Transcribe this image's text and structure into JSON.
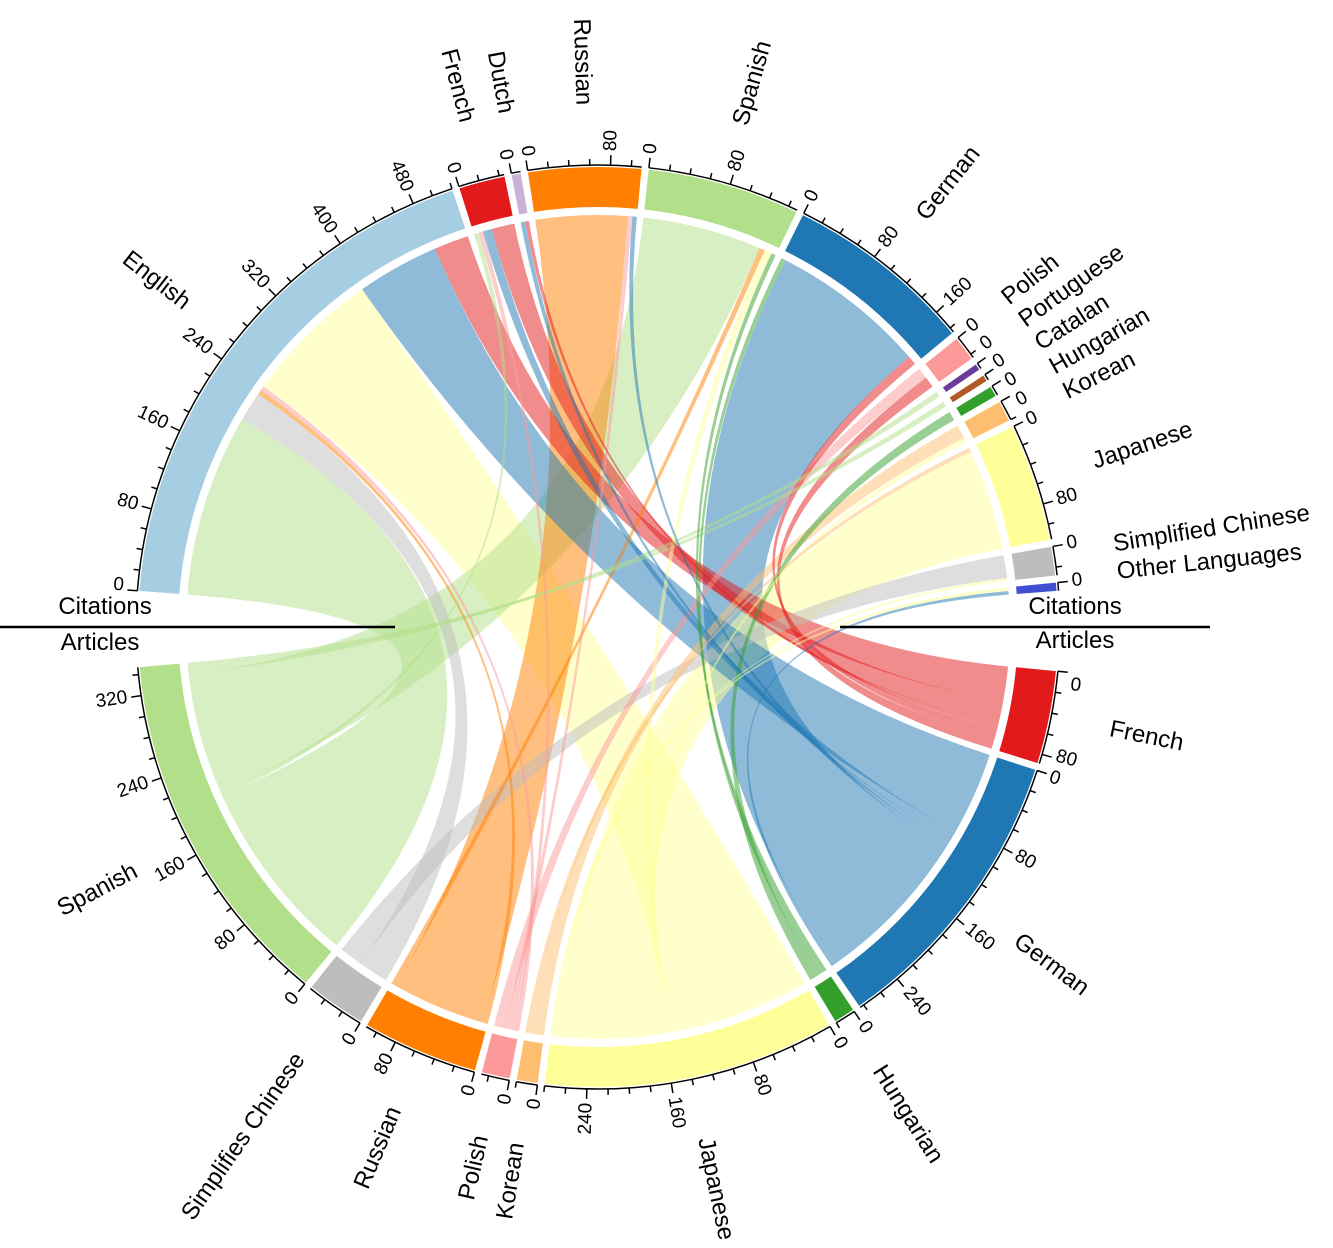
{
  "chart_data": {
    "type": "chord",
    "title": "",
    "upper_half_label_left": "Citations",
    "lower_half_label_left": "Articles",
    "upper_half_label_right": "Citations",
    "lower_half_label_right": "Articles",
    "tick_step": 20,
    "tick_label_step": 80,
    "citations": [
      {
        "name": "English",
        "color": "#a6cee3"
      },
      {
        "name": "French",
        "color": "#e31a1c"
      },
      {
        "name": "Dutch",
        "color": "#cab2d6"
      },
      {
        "name": "Russian",
        "color": "#ff7f00"
      },
      {
        "name": "Spanish",
        "color": "#b2df8a"
      },
      {
        "name": "German",
        "color": "#1f78b4"
      },
      {
        "name": "Polish",
        "color": "#fb9a99"
      },
      {
        "name": "Portuguese",
        "color": "#6a3d9a"
      },
      {
        "name": "Catalan",
        "color": "#b15928"
      },
      {
        "name": "Hungarian",
        "color": "#33a02c"
      },
      {
        "name": "Korean",
        "color": "#fdbf6f"
      },
      {
        "name": "Japanese",
        "color": "#ffff99"
      },
      {
        "name": "Simplified Chinese",
        "color": "#bdbdbd"
      },
      {
        "name": "Other Languages",
        "color": "#3f4fd1"
      }
    ],
    "articles": [
      {
        "name": "French",
        "color": "#e31a1c"
      },
      {
        "name": "German",
        "color": "#1f78b4"
      },
      {
        "name": "Hungarian",
        "color": "#33a02c"
      },
      {
        "name": "Japanese",
        "color": "#ffff99"
      },
      {
        "name": "Korean",
        "color": "#fdbf6f"
      },
      {
        "name": "Polish",
        "color": "#fb9a99"
      },
      {
        "name": "Russian",
        "color": "#ff7f00"
      },
      {
        "name": "Simplifies Chinese",
        "color": "#bdbdbd"
      },
      {
        "name": "Spanish",
        "color": "#b2df8a"
      }
    ],
    "chords": [
      {
        "from": "English",
        "to": "Spanish",
        "value": 200
      },
      {
        "from": "English",
        "to": "Simplifies Chinese",
        "value": 32
      },
      {
        "from": "English",
        "to": "Japanese",
        "value": 150
      },
      {
        "from": "English",
        "to": "German",
        "value": 90
      },
      {
        "from": "English",
        "to": "French",
        "value": 38
      },
      {
        "from": "English",
        "to": "Russian",
        "value": 5
      },
      {
        "from": "English",
        "to": "Polish",
        "value": 5
      },
      {
        "from": "French",
        "to": "French",
        "value": 25
      },
      {
        "from": "French",
        "to": "German",
        "value": 10
      },
      {
        "from": "French",
        "to": "Polish",
        "value": 5
      },
      {
        "from": "French",
        "to": "Spanish",
        "value": 5
      },
      {
        "from": "Dutch",
        "to": "German",
        "value": 5
      },
      {
        "from": "Dutch",
        "to": "French",
        "value": 4
      },
      {
        "from": "Russian",
        "to": "Russian",
        "value": 100
      },
      {
        "from": "Russian",
        "to": "Polish",
        "value": 5
      },
      {
        "from": "Russian",
        "to": "German",
        "value": 5
      },
      {
        "from": "Spanish",
        "to": "Spanish",
        "value": 130
      },
      {
        "from": "Spanish",
        "to": "Japanese",
        "value": 8
      },
      {
        "from": "Spanish",
        "to": "Hungarian",
        "value": 5
      },
      {
        "from": "Spanish",
        "to": "Russian",
        "value": 6
      },
      {
        "from": "German",
        "to": "German",
        "value": 170
      },
      {
        "from": "German",
        "to": "French",
        "value": 10
      },
      {
        "from": "German",
        "to": "Hungarian",
        "value": 5
      },
      {
        "from": "Polish",
        "to": "Polish",
        "value": 12
      },
      {
        "from": "Polish",
        "to": "French",
        "value": 12
      },
      {
        "from": "Portuguese",
        "to": "Spanish",
        "value": 6
      },
      {
        "from": "Catalan",
        "to": "Spanish",
        "value": 6
      },
      {
        "from": "Hungarian",
        "to": "Hungarian",
        "value": 10
      },
      {
        "from": "Korean",
        "to": "Korean",
        "value": 15
      },
      {
        "from": "Korean",
        "to": "Japanese",
        "value": 5
      },
      {
        "from": "Japanese",
        "to": "Japanese",
        "value": 110
      },
      {
        "from": "Japanese",
        "to": "Korean",
        "value": 5
      },
      {
        "from": "Simplified Chinese",
        "to": "Simplifies Chinese",
        "value": 25
      },
      {
        "from": "Simplified Chinese",
        "to": "Japanese",
        "value": 3
      },
      {
        "from": "Other Languages",
        "to": "German",
        "value": 4
      },
      {
        "from": "Other Languages",
        "to": "Japanese",
        "value": 4
      }
    ]
  }
}
